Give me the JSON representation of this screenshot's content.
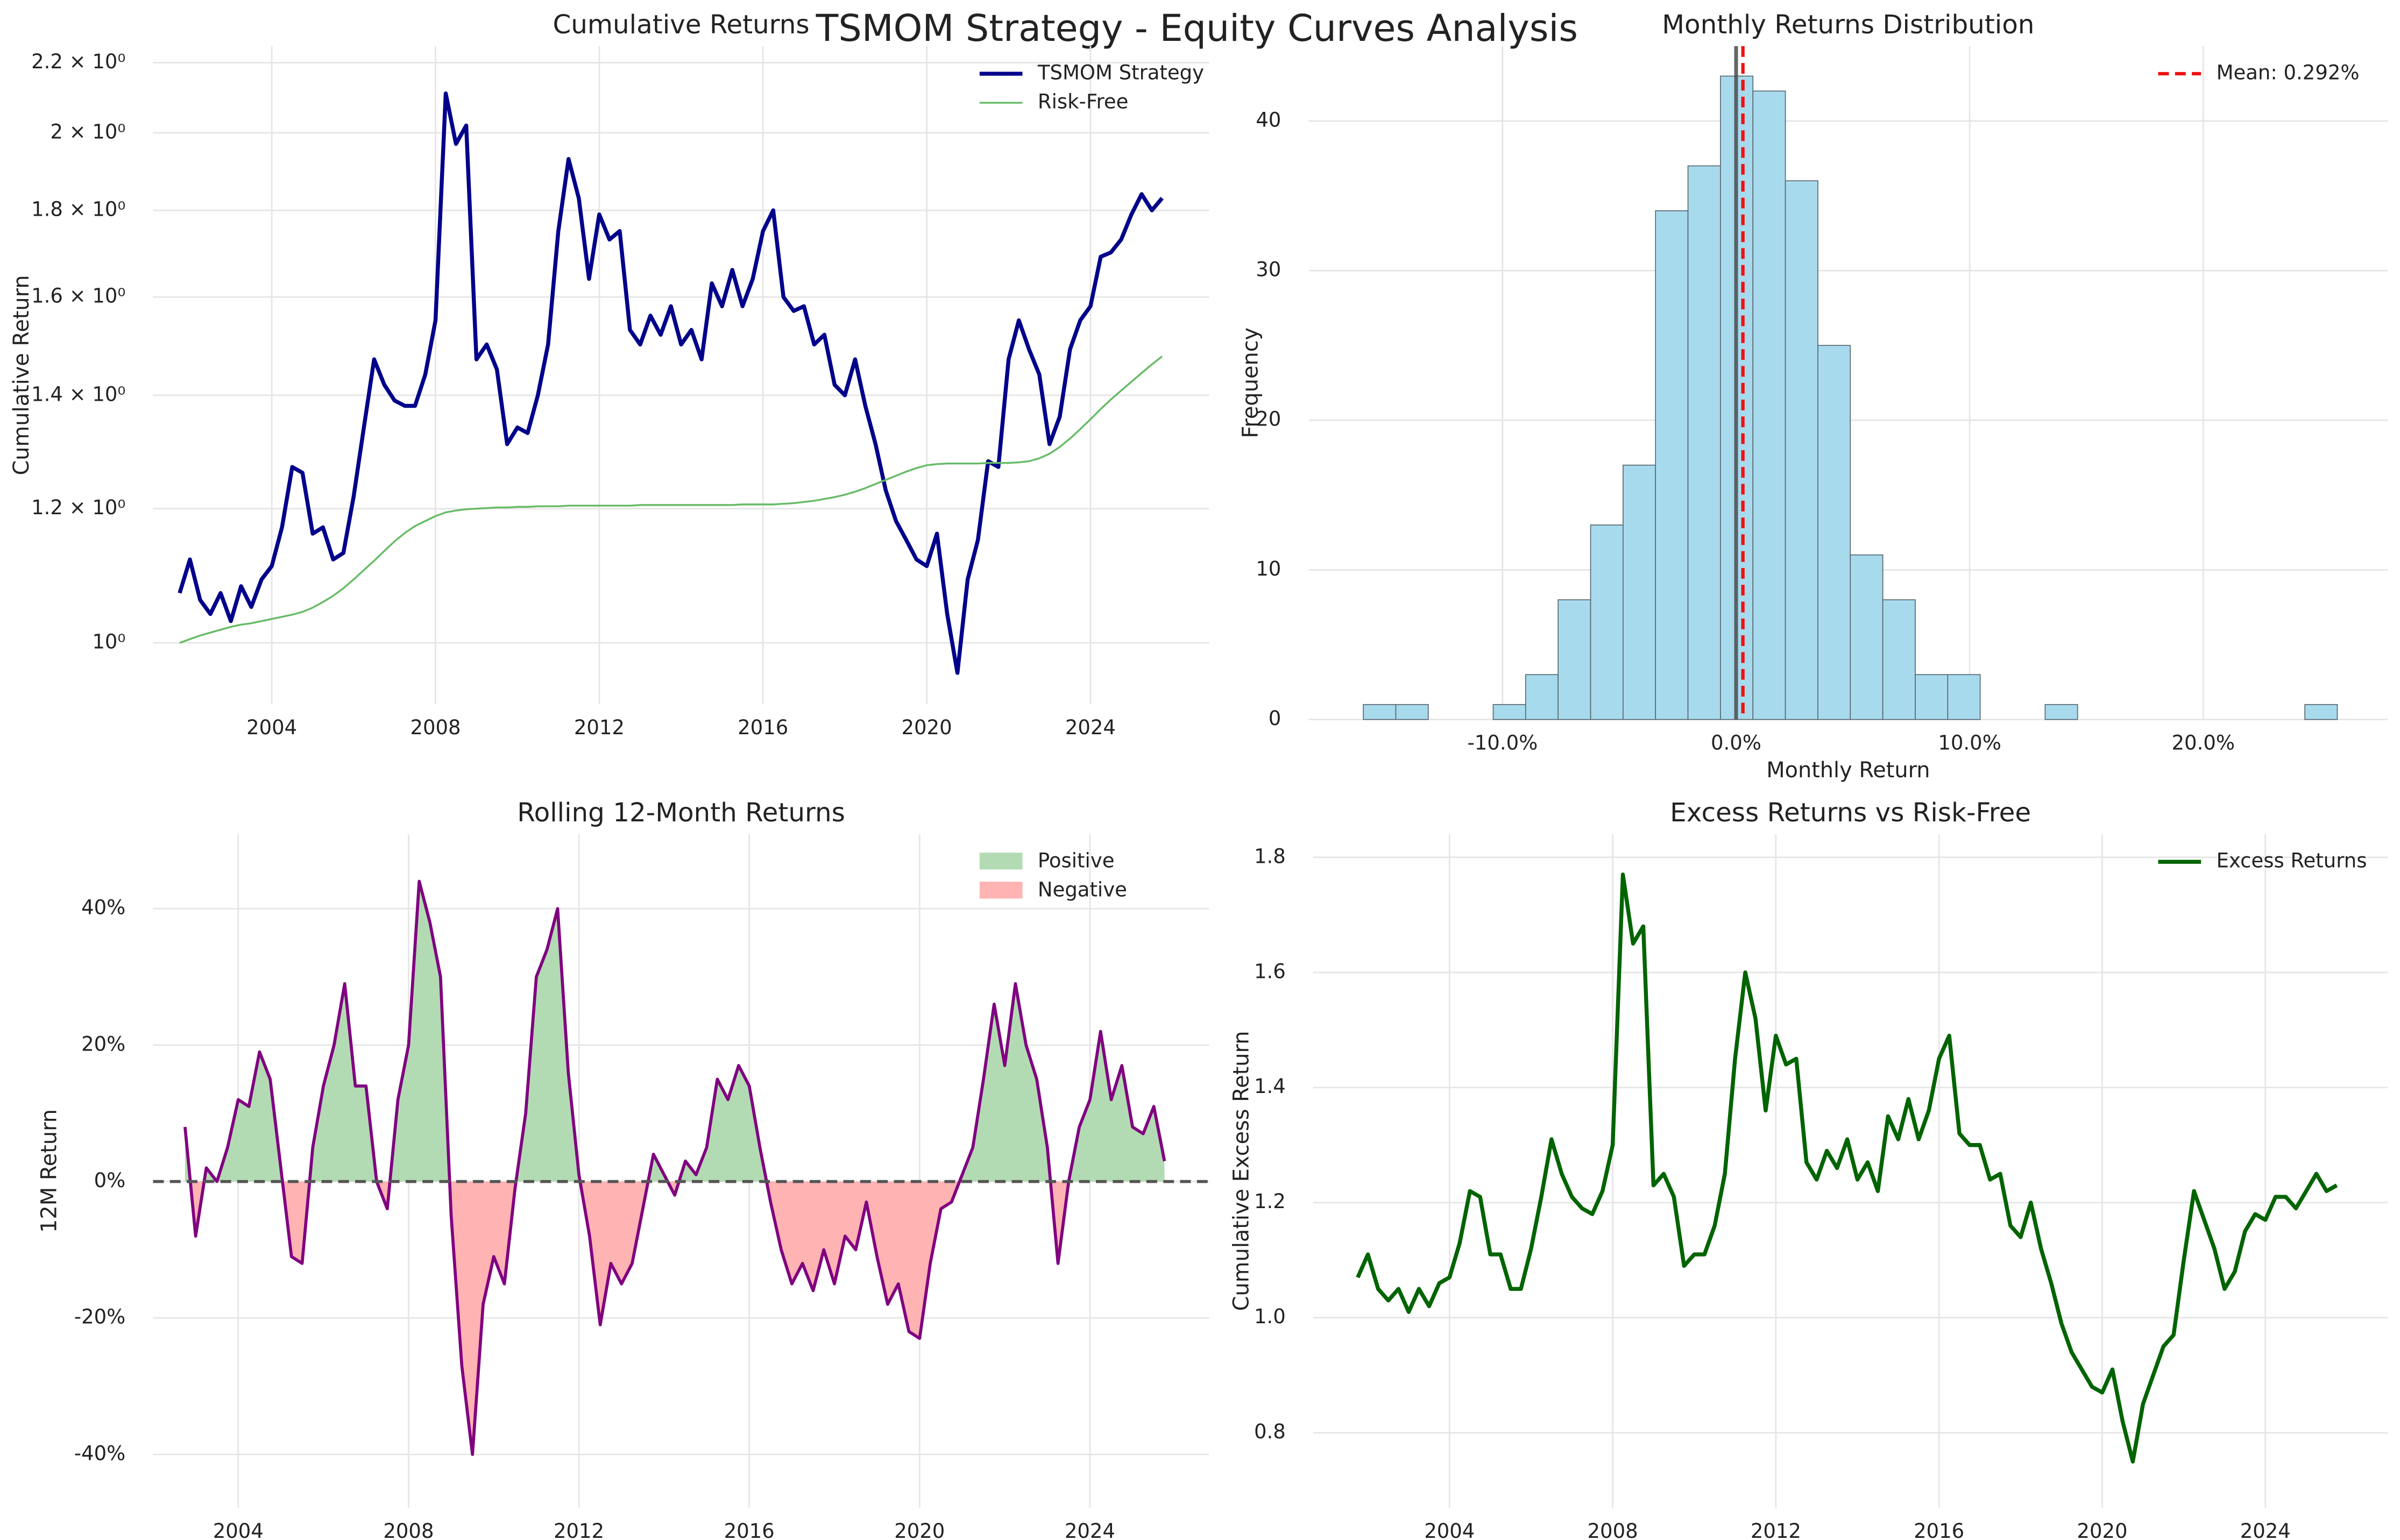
{
  "title": "TSMOM Strategy - Equity Curves Analysis",
  "chart_data": [
    {
      "type": "line",
      "title": "Cumulative Returns",
      "y_label": "Cumulative Return",
      "log_y": true,
      "grid": true,
      "legend": "upper right",
      "x": [
        2001.75,
        2002,
        2002.25,
        2002.5,
        2002.75,
        2003,
        2003.25,
        2003.5,
        2003.75,
        2004,
        2004.25,
        2004.5,
        2004.75,
        2005,
        2005.25,
        2005.5,
        2005.75,
        2006,
        2006.25,
        2006.5,
        2006.75,
        2007,
        2007.25,
        2007.5,
        2007.75,
        2008,
        2008.25,
        2008.5,
        2008.75,
        2009,
        2009.25,
        2009.5,
        2009.75,
        2010,
        2010.25,
        2010.5,
        2010.75,
        2011,
        2011.25,
        2011.5,
        2011.75,
        2012,
        2012.25,
        2012.5,
        2012.75,
        2013,
        2013.25,
        2013.5,
        2013.75,
        2014,
        2014.25,
        2014.5,
        2014.75,
        2015,
        2015.25,
        2015.5,
        2015.75,
        2016,
        2016.25,
        2016.5,
        2016.75,
        2017,
        2017.25,
        2017.5,
        2017.75,
        2018,
        2018.25,
        2018.5,
        2018.75,
        2019,
        2019.25,
        2019.5,
        2019.75,
        2020,
        2020.25,
        2020.5,
        2020.75,
        2021,
        2021.25,
        2021.5,
        2021.75,
        2022,
        2022.25,
        2022.5,
        2022.75,
        2023,
        2023.25,
        2023.5,
        2023.75,
        2024,
        2024.25,
        2024.5,
        2024.75,
        2025,
        2025.25,
        2025.5,
        2025.75
      ],
      "series": [
        {
          "name": "TSMOM Strategy",
          "color": "#00008b",
          "values": [
            1.07,
            1.12,
            1.06,
            1.04,
            1.07,
            1.03,
            1.08,
            1.05,
            1.09,
            1.11,
            1.17,
            1.27,
            1.26,
            1.16,
            1.17,
            1.12,
            1.13,
            1.22,
            1.34,
            1.47,
            1.42,
            1.39,
            1.38,
            1.38,
            1.44,
            1.55,
            2.11,
            1.97,
            2.02,
            1.47,
            1.5,
            1.45,
            1.31,
            1.34,
            1.33,
            1.4,
            1.5,
            1.75,
            1.93,
            1.83,
            1.64,
            1.79,
            1.73,
            1.75,
            1.53,
            1.5,
            1.56,
            1.52,
            1.58,
            1.5,
            1.53,
            1.47,
            1.63,
            1.58,
            1.66,
            1.58,
            1.64,
            1.75,
            1.8,
            1.6,
            1.57,
            1.58,
            1.5,
            1.52,
            1.42,
            1.4,
            1.47,
            1.38,
            1.31,
            1.23,
            1.18,
            1.15,
            1.12,
            1.11,
            1.16,
            1.04,
            0.96,
            1.09,
            1.15,
            1.28,
            1.27,
            1.47,
            1.55,
            1.49,
            1.44,
            1.31,
            1.36,
            1.49,
            1.55,
            1.58,
            1.69,
            1.7,
            1.73,
            1.79,
            1.84,
            1.8,
            1.83
          ]
        },
        {
          "name": "Risk-Free",
          "color": "#66bb66",
          "values": [
            1.0,
            1.005,
            1.01,
            1.014,
            1.018,
            1.022,
            1.025,
            1.027,
            1.03,
            1.033,
            1.036,
            1.039,
            1.043,
            1.049,
            1.057,
            1.066,
            1.077,
            1.09,
            1.104,
            1.118,
            1.133,
            1.148,
            1.161,
            1.172,
            1.18,
            1.188,
            1.194,
            1.197,
            1.199,
            1.2,
            1.201,
            1.202,
            1.202,
            1.203,
            1.203,
            1.204,
            1.204,
            1.204,
            1.205,
            1.205,
            1.205,
            1.205,
            1.205,
            1.205,
            1.205,
            1.206,
            1.206,
            1.206,
            1.206,
            1.206,
            1.206,
            1.206,
            1.206,
            1.206,
            1.206,
            1.207,
            1.207,
            1.207,
            1.207,
            1.208,
            1.209,
            1.211,
            1.213,
            1.216,
            1.219,
            1.223,
            1.228,
            1.234,
            1.241,
            1.248,
            1.255,
            1.262,
            1.268,
            1.273,
            1.275,
            1.276,
            1.276,
            1.276,
            1.276,
            1.277,
            1.277,
            1.277,
            1.278,
            1.28,
            1.285,
            1.293,
            1.305,
            1.32,
            1.337,
            1.355,
            1.374,
            1.392,
            1.409,
            1.426,
            1.443,
            1.46,
            1.476
          ]
        }
      ],
      "xlim": [
        2001.1,
        2026.9
      ],
      "xticks": [
        2004,
        2008,
        2012,
        2016,
        2020,
        2024
      ],
      "ylim": [
        0.92,
        2.25
      ],
      "yticks": [
        {
          "value": 1,
          "label": "10⁰"
        },
        {
          "value": 1.2,
          "label": "1.2 × 10⁰"
        },
        {
          "value": 1.4,
          "label": "1.4 × 10⁰"
        },
        {
          "value": 1.6,
          "label": "1.6 × 10⁰"
        },
        {
          "value": 1.8,
          "label": "1.8 × 10⁰"
        },
        {
          "value": 2,
          "label": "2 × 10⁰"
        },
        {
          "value": 2.2,
          "label": "2.2 × 10⁰"
        }
      ]
    },
    {
      "type": "histogram",
      "title": "Monthly Returns Distribution",
      "x_label": "Monthly Return",
      "y_label": "Frequency",
      "grid": true,
      "legend": "upper right",
      "color": "#a8daee",
      "bins": [
        -15.96,
        -14.57,
        -13.18,
        -11.79,
        -10.4,
        -9.01,
        -7.62,
        -6.23,
        -4.84,
        -3.45,
        -2.06,
        -0.67,
        0.72,
        2.11,
        3.5,
        4.89,
        6.28,
        7.67,
        9.06,
        10.45,
        11.84,
        13.23,
        14.62,
        16.01,
        17.4,
        18.79,
        20.18,
        21.57,
        22.96,
        24.35,
        25.74
      ],
      "values": [
        1,
        1,
        0,
        0,
        1,
        3,
        8,
        13,
        17,
        34,
        37,
        43,
        42,
        36,
        25,
        11,
        8,
        3,
        3,
        0,
        0,
        1,
        0,
        0,
        0,
        0,
        0,
        0,
        0,
        1
      ],
      "mean_line": {
        "value": 0.292,
        "label": "Mean: 0.292%",
        "color": "#ee1111"
      },
      "reference_line": 0,
      "xlim": [
        -18.3,
        27.9
      ],
      "xticks": [
        {
          "value": -10,
          "label": "-10.0%"
        },
        {
          "value": 0,
          "label": "0.0%"
        },
        {
          "value": 10,
          "label": "10.0%"
        },
        {
          "value": 20,
          "label": "20.0%"
        }
      ],
      "ylim": [
        0,
        45
      ],
      "yticks": [
        0,
        10,
        20,
        30,
        40
      ]
    },
    {
      "type": "area",
      "title": "Rolling 12-Month Returns",
      "y_label": "12M Return",
      "grid": true,
      "legend": "upper right",
      "color": "#800080",
      "fill_positive": {
        "name": "Positive",
        "color": "#b3dbb3"
      },
      "fill_negative": {
        "name": "Negative",
        "color": "#ffb3b3"
      },
      "reference_line": 0,
      "x": [
        2002.75,
        2003,
        2003.25,
        2003.5,
        2003.75,
        2004,
        2004.25,
        2004.5,
        2004.75,
        2005,
        2005.25,
        2005.5,
        2005.75,
        2006,
        2006.25,
        2006.5,
        2006.75,
        2007,
        2007.25,
        2007.5,
        2007.75,
        2008,
        2008.25,
        2008.5,
        2008.75,
        2009,
        2009.25,
        2009.5,
        2009.75,
        2010,
        2010.25,
        2010.5,
        2010.75,
        2011,
        2011.25,
        2011.5,
        2011.75,
        2012,
        2012.25,
        2012.5,
        2012.75,
        2013,
        2013.25,
        2013.5,
        2013.75,
        2014,
        2014.25,
        2014.5,
        2014.75,
        2015,
        2015.25,
        2015.5,
        2015.75,
        2016,
        2016.25,
        2016.5,
        2016.75,
        2017,
        2017.25,
        2017.5,
        2017.75,
        2018,
        2018.25,
        2018.5,
        2018.75,
        2019,
        2019.25,
        2019.5,
        2019.75,
        2020,
        2020.25,
        2020.5,
        2020.75,
        2021,
        2021.25,
        2021.5,
        2021.75,
        2022,
        2022.25,
        2022.5,
        2022.75,
        2023,
        2023.25,
        2023.5,
        2023.75,
        2024,
        2024.25,
        2024.5,
        2024.75,
        2025,
        2025.25,
        2025.5,
        2025.75
      ],
      "values": [
        8,
        -8,
        2,
        0,
        5,
        12,
        11,
        19,
        15,
        2,
        -11,
        -12,
        5,
        14,
        20,
        29,
        14,
        14,
        0,
        -4,
        12,
        20,
        44,
        38,
        30,
        -5,
        -27,
        -40,
        -18,
        -11,
        -15,
        -1,
        10,
        30,
        34,
        40,
        16,
        1,
        -8,
        -21,
        -12,
        -15,
        -12,
        -4,
        4,
        1,
        -2,
        3,
        1,
        5,
        15,
        12,
        17,
        14,
        5,
        -3,
        -10,
        -15,
        -12,
        -16,
        -10,
        -15,
        -8,
        -10,
        -3,
        -11,
        -18,
        -15,
        -22,
        -23,
        -12,
        -4,
        -3,
        1,
        5,
        15,
        26,
        17,
        29,
        20,
        15,
        5,
        -12,
        0,
        8,
        12,
        22,
        12,
        17,
        8,
        7,
        11,
        3
      ],
      "xlim": [
        2002.0,
        2026.8
      ],
      "xticks": [
        2004,
        2008,
        2012,
        2016,
        2020,
        2024
      ],
      "ylim": [
        -47.8,
        50.9
      ],
      "yticks": [
        {
          "value": -40,
          "label": "-40%"
        },
        {
          "value": -20,
          "label": "-20%"
        },
        {
          "value": 0,
          "label": "0%"
        },
        {
          "value": 20,
          "label": "20%"
        },
        {
          "value": 40,
          "label": "40%"
        }
      ]
    },
    {
      "type": "line",
      "title": "Excess Returns vs Risk-Free",
      "y_label": "Cumulative Excess Return",
      "grid": true,
      "legend": "upper right",
      "x": [
        2001.75,
        2002,
        2002.25,
        2002.5,
        2002.75,
        2003,
        2003.25,
        2003.5,
        2003.75,
        2004,
        2004.25,
        2004.5,
        2004.75,
        2005,
        2005.25,
        2005.5,
        2005.75,
        2006,
        2006.25,
        2006.5,
        2006.75,
        2007,
        2007.25,
        2007.5,
        2007.75,
        2008,
        2008.25,
        2008.5,
        2008.75,
        2009,
        2009.25,
        2009.5,
        2009.75,
        2010,
        2010.25,
        2010.5,
        2010.75,
        2011,
        2011.25,
        2011.5,
        2011.75,
        2012,
        2012.25,
        2012.5,
        2012.75,
        2013,
        2013.25,
        2013.5,
        2013.75,
        2014,
        2014.25,
        2014.5,
        2014.75,
        2015,
        2015.25,
        2015.5,
        2015.75,
        2016,
        2016.25,
        2016.5,
        2016.75,
        2017,
        2017.25,
        2017.5,
        2017.75,
        2018,
        2018.25,
        2018.5,
        2018.75,
        2019,
        2019.25,
        2019.5,
        2019.75,
        2020,
        2020.25,
        2020.5,
        2020.75,
        2021,
        2021.25,
        2021.5,
        2021.75,
        2022,
        2022.25,
        2022.5,
        2022.75,
        2023,
        2023.25,
        2023.5,
        2023.75,
        2024,
        2024.25,
        2024.5,
        2024.75,
        2025,
        2025.25,
        2025.5,
        2025.75
      ],
      "series": [
        {
          "name": "Excess Returns",
          "color": "#006400",
          "values": [
            1.07,
            1.11,
            1.05,
            1.03,
            1.05,
            1.01,
            1.05,
            1.02,
            1.06,
            1.07,
            1.13,
            1.22,
            1.21,
            1.11,
            1.11,
            1.05,
            1.05,
            1.12,
            1.21,
            1.31,
            1.25,
            1.21,
            1.19,
            1.18,
            1.22,
            1.3,
            1.77,
            1.65,
            1.68,
            1.23,
            1.25,
            1.21,
            1.09,
            1.11,
            1.11,
            1.16,
            1.25,
            1.45,
            1.6,
            1.52,
            1.36,
            1.49,
            1.44,
            1.45,
            1.27,
            1.24,
            1.29,
            1.26,
            1.31,
            1.24,
            1.27,
            1.22,
            1.35,
            1.31,
            1.38,
            1.31,
            1.36,
            1.45,
            1.49,
            1.32,
            1.3,
            1.3,
            1.24,
            1.25,
            1.16,
            1.14,
            1.2,
            1.12,
            1.06,
            0.99,
            0.94,
            0.91,
            0.88,
            0.87,
            0.91,
            0.82,
            0.75,
            0.85,
            0.9,
            0.95,
            0.97,
            1.1,
            1.22,
            1.17,
            1.12,
            1.05,
            1.08,
            1.15,
            1.18,
            1.17,
            1.21,
            1.21,
            1.19,
            1.22,
            1.25,
            1.22,
            1.23
          ]
        }
      ],
      "xlim": [
        2000.66,
        2027.0
      ],
      "xticks": [
        2004,
        2008,
        2012,
        2016,
        2020,
        2024
      ],
      "ylim": [
        0.67,
        1.84
      ],
      "yticks": [
        0.8,
        {
          "value": 1,
          "label": "1.0"
        },
        1.2,
        1.4,
        1.6,
        1.8
      ]
    }
  ]
}
